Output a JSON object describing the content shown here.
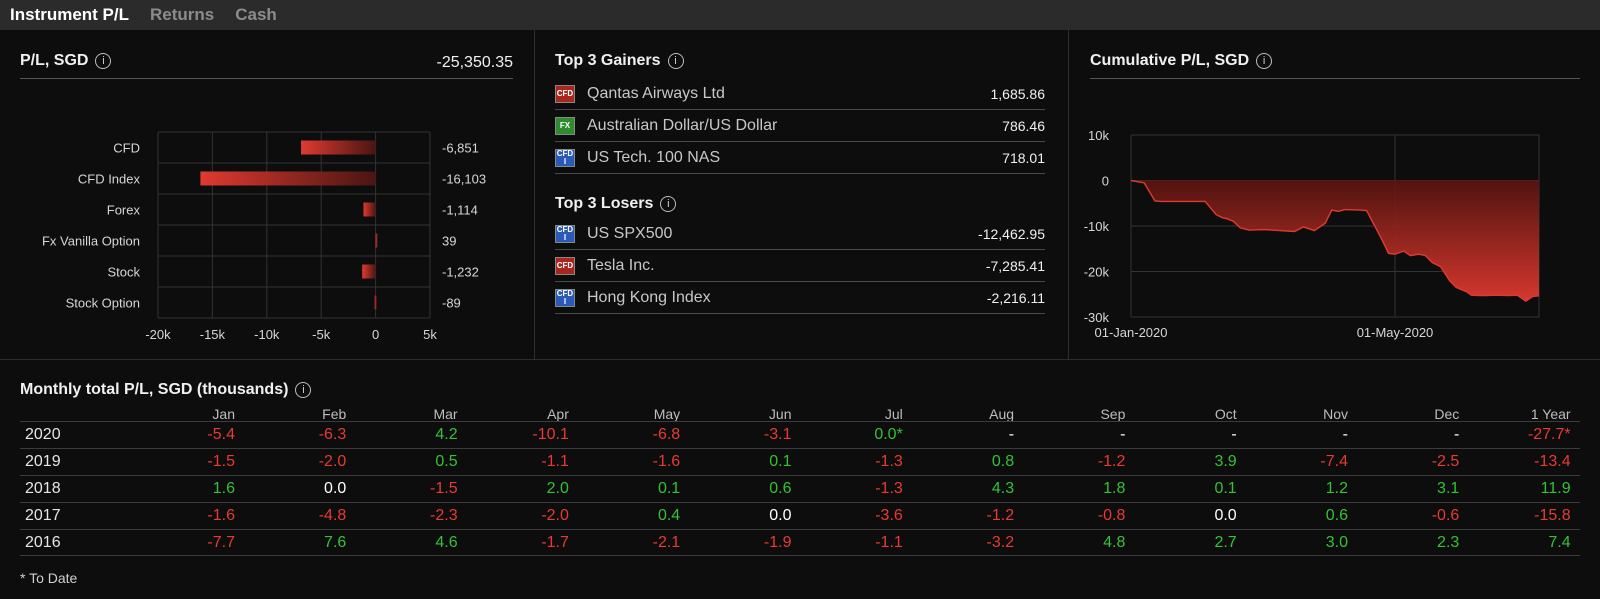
{
  "tabs": [
    {
      "label": "Instrument P/L",
      "active": true
    },
    {
      "label": "Returns",
      "active": false
    },
    {
      "label": "Cash",
      "active": false
    }
  ],
  "pl_panel": {
    "title": "P/L, SGD",
    "total": "-25,350.35",
    "info_icon": "info-icon"
  },
  "top_panel": {
    "gainers_title": "Top 3 Gainers",
    "losers_title": "Top 3 Losers",
    "gainers": [
      {
        "type": "CFD",
        "name": "Qantas Airways Ltd",
        "value": "1,685.86"
      },
      {
        "type": "FX",
        "name": "Australian Dollar/US Dollar",
        "value": "786.46"
      },
      {
        "type": "CFD Index",
        "name": "US Tech. 100 NAS",
        "value": "718.01"
      }
    ],
    "losers": [
      {
        "type": "CFD Index",
        "name": "US SPX500",
        "value": "-12,462.95"
      },
      {
        "type": "CFD",
        "name": "Tesla Inc.",
        "value": "-7,285.41"
      },
      {
        "type": "CFD Index",
        "name": "Hong Kong Index",
        "value": "-2,216.11"
      }
    ],
    "icon_text": {
      "cfd": "CFD",
      "fx": "FX",
      "cfdi_top": "CFD",
      "cfdi_bottom": "I"
    }
  },
  "cum_panel": {
    "title": "Cumulative P/L, SGD"
  },
  "chart_data": [
    {
      "type": "bar",
      "orientation": "horizontal",
      "title": "P/L, SGD",
      "categories": [
        "CFD",
        "CFD Index",
        "Forex",
        "Fx Vanilla Option",
        "Stock",
        "Stock Option"
      ],
      "values": [
        -6851,
        -16103,
        -1114,
        39,
        -1232,
        -89
      ],
      "value_labels": [
        "-6,851",
        "-16,103",
        "-1,114",
        "39",
        "-1,232",
        "-89"
      ],
      "xlim": [
        -20000,
        5000
      ],
      "x_ticks": [
        -20000,
        -15000,
        -10000,
        -5000,
        0,
        5000
      ],
      "x_tick_labels": [
        "-20k",
        "-15k",
        "-10k",
        "-5k",
        "0",
        "5k"
      ],
      "bar_color": "#e03a30",
      "grid": true
    },
    {
      "type": "area",
      "title": "Cumulative P/L, SGD",
      "x_tick_labels": [
        "01-Jan-2020",
        "01-May-2020"
      ],
      "x": [
        "2020-01-01",
        "2020-01-07",
        "2020-01-12",
        "2020-01-15",
        "2020-02-04",
        "2020-02-09",
        "2020-02-12",
        "2020-02-14",
        "2020-02-17",
        "2020-02-20",
        "2020-02-24",
        "2020-03-02",
        "2020-03-09",
        "2020-03-16",
        "2020-03-20",
        "2020-03-25",
        "2020-03-30",
        "2020-04-02",
        "2020-04-05",
        "2020-04-08",
        "2020-04-15",
        "2020-04-18",
        "2020-04-25",
        "2020-04-28",
        "2020-05-01",
        "2020-05-05",
        "2020-05-08",
        "2020-05-12",
        "2020-05-15",
        "2020-05-18",
        "2020-05-22",
        "2020-05-26",
        "2020-05-29",
        "2020-06-03",
        "2020-06-05",
        "2020-06-09",
        "2020-06-12",
        "2020-06-16",
        "2020-06-22",
        "2020-06-26",
        "2020-06-30",
        "2020-07-03",
        "2020-07-06"
      ],
      "y": [
        0,
        -500,
        -4500,
        -4600,
        -4600,
        -7500,
        -8200,
        -8400,
        -9000,
        -10400,
        -10900,
        -10800,
        -11000,
        -11200,
        -10200,
        -11000,
        -9400,
        -6500,
        -6800,
        -6400,
        -6500,
        -6600,
        -13000,
        -16000,
        -16200,
        -15500,
        -16500,
        -16200,
        -16500,
        -18000,
        -19000,
        -22000,
        -23500,
        -24500,
        -25200,
        -25300,
        -25300,
        -25200,
        -25300,
        -25200,
        -26500,
        -25500,
        -25350
      ],
      "ylim": [
        -30000,
        10000
      ],
      "y_ticks": [
        10000,
        0,
        -10000,
        -20000,
        -30000
      ],
      "y_tick_labels": [
        "10k",
        "0",
        "-10k",
        "-20k",
        "-30k"
      ],
      "line_color": "#e03a30",
      "grid": true
    }
  ],
  "monthly": {
    "title": "Monthly total P/L, SGD (thousands)",
    "columns": [
      "Jan",
      "Feb",
      "Mar",
      "Apr",
      "May",
      "Jun",
      "Jul",
      "Aug",
      "Sep",
      "Oct",
      "Nov",
      "Dec",
      "1 Year"
    ],
    "rows": [
      {
        "year": "2020",
        "values": [
          "-5.4",
          "-6.3",
          "4.2",
          "-10.1",
          "-6.8",
          "-3.1",
          "0.0*",
          "-",
          "-",
          "-",
          "-",
          "-",
          "-27.7*"
        ],
        "styles": [
          "neg",
          "neg",
          "pos",
          "neg",
          "neg",
          "neg",
          "pos",
          "na",
          "na",
          "na",
          "na",
          "na",
          "neg"
        ]
      },
      {
        "year": "2019",
        "values": [
          "-1.5",
          "-2.0",
          "0.5",
          "-1.1",
          "-1.6",
          "0.1",
          "-1.3",
          "0.8",
          "-1.2",
          "3.9",
          "-7.4",
          "-2.5",
          "-13.4"
        ],
        "styles": [
          "neg",
          "neg",
          "pos",
          "neg",
          "neg",
          "pos",
          "neg",
          "pos",
          "neg",
          "pos",
          "neg",
          "neg",
          "neg"
        ]
      },
      {
        "year": "2018",
        "values": [
          "1.6",
          "0.0",
          "-1.5",
          "2.0",
          "0.1",
          "0.6",
          "-1.3",
          "4.3",
          "1.8",
          "0.1",
          "1.2",
          "3.1",
          "11.9"
        ],
        "styles": [
          "pos",
          "zero",
          "neg",
          "pos",
          "pos",
          "pos",
          "neg",
          "pos",
          "pos",
          "pos",
          "pos",
          "pos",
          "pos"
        ]
      },
      {
        "year": "2017",
        "values": [
          "-1.6",
          "-4.8",
          "-2.3",
          "-2.0",
          "0.4",
          "0.0",
          "-3.6",
          "-1.2",
          "-0.8",
          "0.0",
          "0.6",
          "-0.6",
          "-15.8"
        ],
        "styles": [
          "neg",
          "neg",
          "neg",
          "neg",
          "pos",
          "zero",
          "neg",
          "neg",
          "neg",
          "zero",
          "pos",
          "neg",
          "neg"
        ]
      },
      {
        "year": "2016",
        "values": [
          "-7.7",
          "7.6",
          "4.6",
          "-1.7",
          "-2.1",
          "-1.9",
          "-1.1",
          "-3.2",
          "4.8",
          "2.7",
          "3.0",
          "2.3",
          "7.4"
        ],
        "styles": [
          "neg",
          "pos",
          "pos",
          "neg",
          "neg",
          "neg",
          "neg",
          "neg",
          "pos",
          "pos",
          "pos",
          "pos",
          "pos"
        ]
      }
    ],
    "footnote": "* To Date"
  },
  "colors": {
    "negative": "#e83a32",
    "positive": "#34c234",
    "background": "#0d0d0d",
    "tabbar": "#2b2b2b"
  }
}
